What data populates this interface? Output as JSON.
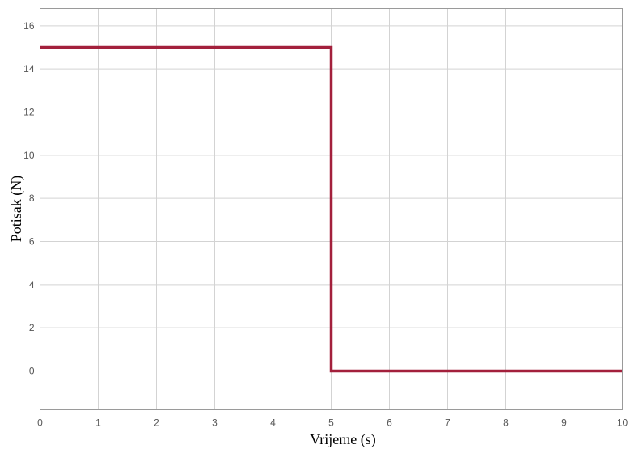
{
  "chart_data": {
    "type": "line",
    "xlabel": "Vrijeme (s)",
    "ylabel": "Potisak (N)",
    "xlim": [
      0,
      10
    ],
    "ylim": [
      -1.8,
      16.8
    ],
    "xticks": [
      "0",
      "1",
      "2",
      "3",
      "4",
      "5",
      "6",
      "7",
      "8",
      "9",
      "10"
    ],
    "yticks": [
      "0",
      "2",
      "4",
      "6",
      "8",
      "10",
      "12",
      "14",
      "16"
    ],
    "grid": true,
    "series": [
      {
        "color": "#a3203c",
        "x": [
          0,
          5,
          5,
          10
        ],
        "y": [
          15,
          15,
          0,
          0
        ]
      }
    ]
  }
}
